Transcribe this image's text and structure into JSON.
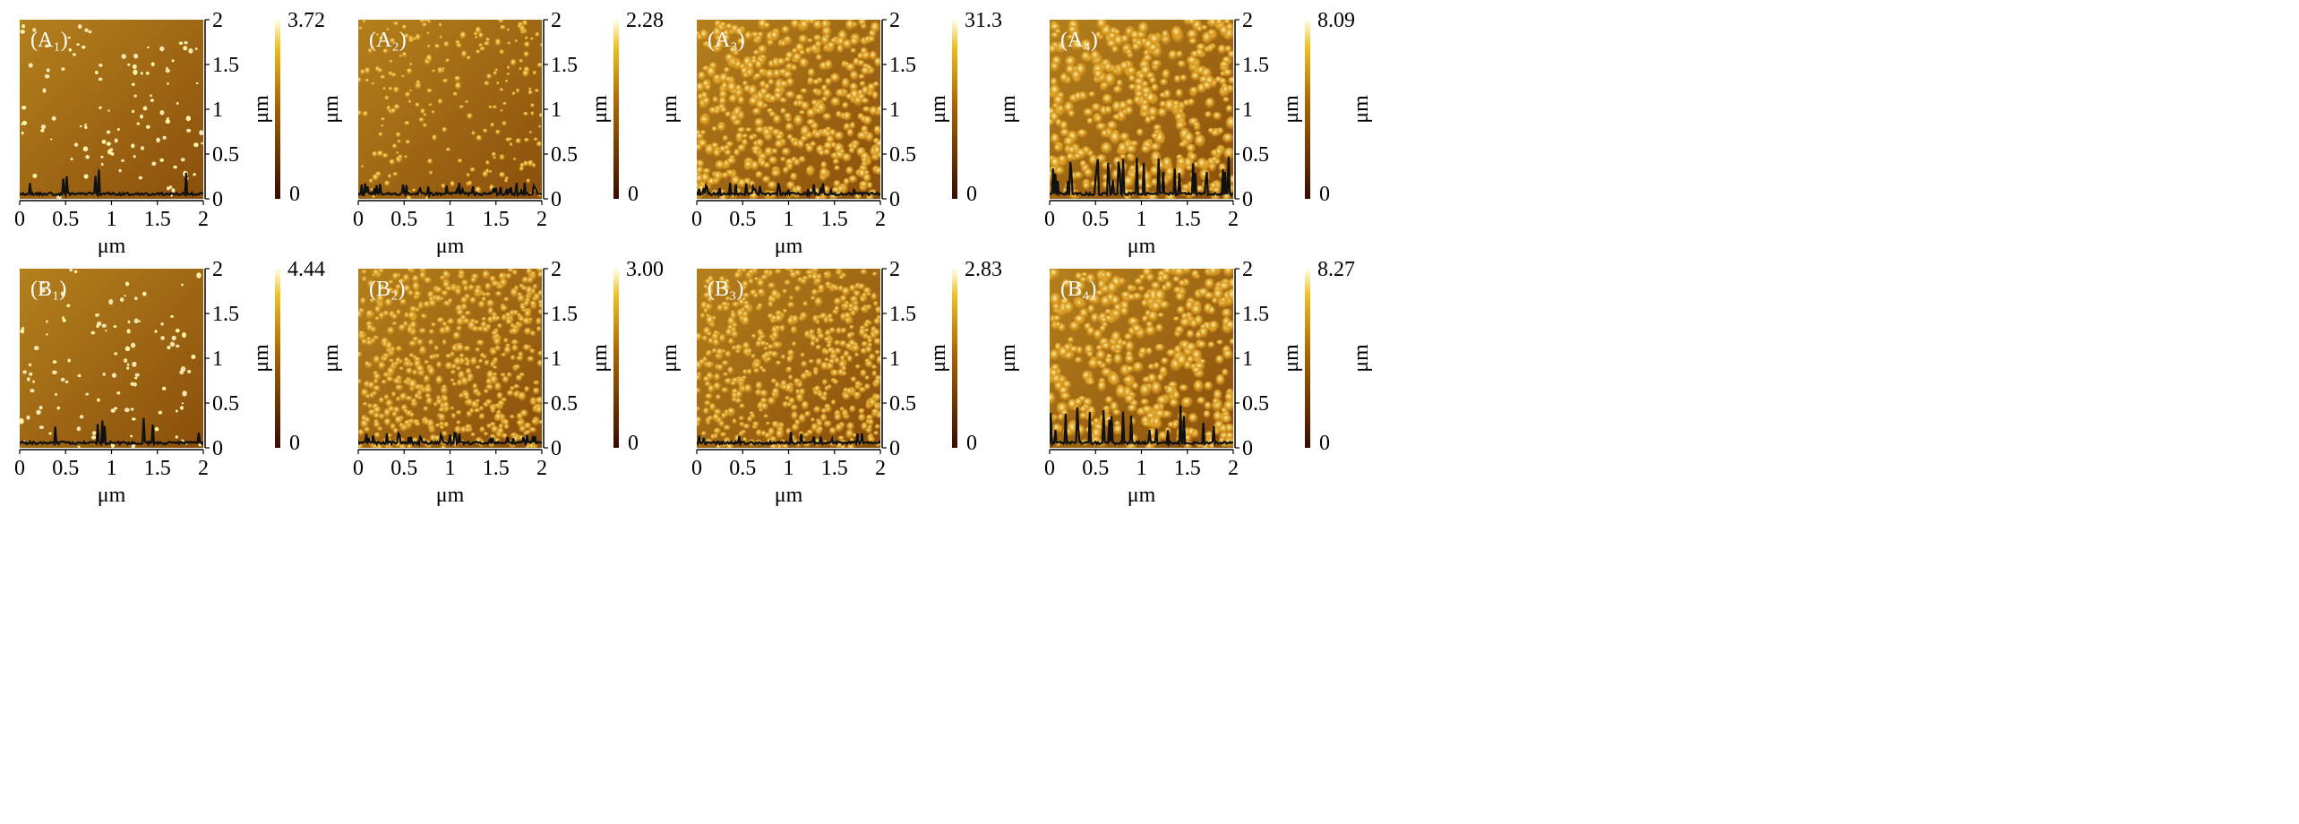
{
  "figure": {
    "description_free": true,
    "panels": [
      {
        "label": "(A₁)",
        "colorbar_max": "3.72",
        "colorbar_min": "0",
        "style": "sparse",
        "seed": 11
      },
      {
        "label": "(A₂)",
        "colorbar_max": "2.28",
        "colorbar_min": "0",
        "style": "medium",
        "seed": 23
      },
      {
        "label": "(A₃)",
        "colorbar_max": "31.3",
        "colorbar_min": "0",
        "style": "dense",
        "seed": 37
      },
      {
        "label": "(A₄)",
        "colorbar_max": "8.09",
        "colorbar_min": "0",
        "style": "dense-large",
        "seed": 41
      },
      {
        "label": "(B₁)",
        "colorbar_max": "4.44",
        "colorbar_min": "0",
        "style": "sparse",
        "seed": 53
      },
      {
        "label": "(B₂)",
        "colorbar_max": "3.00",
        "colorbar_min": "0",
        "style": "dense-small",
        "seed": 67
      },
      {
        "label": "(B₃)",
        "colorbar_max": "2.83",
        "colorbar_min": "0",
        "style": "dense-small",
        "seed": 71
      },
      {
        "label": "(B₄)",
        "colorbar_max": "8.27",
        "colorbar_min": "0",
        "style": "dense-large",
        "seed": 89
      }
    ],
    "axis_unit_label": "μm",
    "x_ticks": [
      "0",
      "0.5",
      "1",
      "1.5",
      "2"
    ],
    "y_ticks": [
      "0",
      "0.5",
      "1",
      "1.5",
      "2"
    ],
    "colors": {
      "background_low": "#8a4f0c",
      "background_high": "#b4801c",
      "grain_low": "#d99a1f",
      "grain_high": "#fff3a8",
      "colorbar_bottom": "#3a0a00",
      "colorbar_mid": "#b06a00",
      "colorbar_top": "#ffffe8",
      "profile_line": "#111111"
    }
  }
}
